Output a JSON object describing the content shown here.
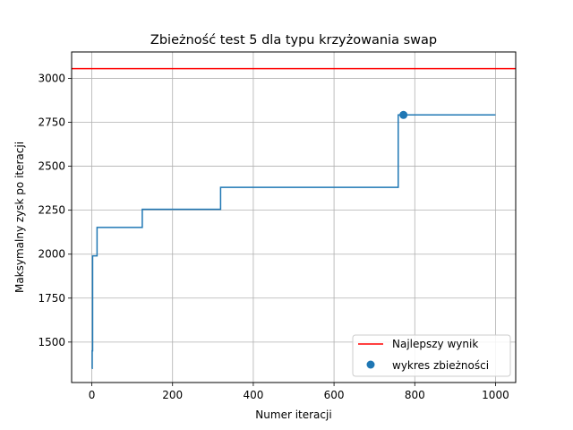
{
  "chart_data": {
    "type": "line",
    "title": "Zbieżność test 5 dla typu krzyżowania swap",
    "xlabel": "Numer iteracji",
    "ylabel": "Maksymalny zysk po iteracji",
    "xlim": [
      -50,
      1050
    ],
    "ylim": [
      1270,
      3150
    ],
    "xticks": [
      0,
      200,
      400,
      600,
      800,
      1000
    ],
    "yticks": [
      1500,
      1750,
      2000,
      2250,
      2500,
      2750,
      3000
    ],
    "grid": true,
    "legend_position": "lower-right",
    "series": [
      {
        "name": "wykres zbieżności",
        "kind": "step-line",
        "color": "#1f77b4",
        "x": [
          0,
          1,
          2,
          3,
          12,
          13,
          124,
          125,
          318,
          319,
          758,
          759,
          1000
        ],
        "y": [
          1350,
          1450,
          1990,
          1990,
          1990,
          2152,
          2152,
          2255,
          2255,
          2380,
          2380,
          2792,
          2792
        ]
      },
      {
        "name": "Najlepszy wynik",
        "kind": "hline",
        "color": "#ff0000",
        "y": 3055
      }
    ],
    "convergence_point": {
      "x": 772,
      "y": 2792,
      "color": "#1f77b4"
    },
    "legend": [
      "Najlepszy wynik",
      "wykres zbieżności"
    ]
  }
}
